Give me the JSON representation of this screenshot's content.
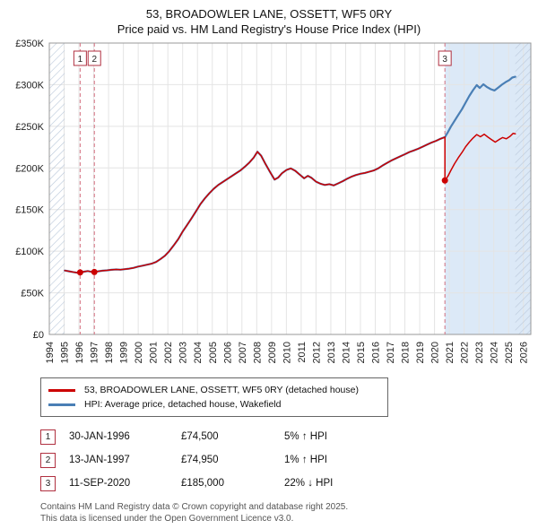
{
  "chart_data": {
    "type": "line",
    "title": "53, BROADOWLER LANE, OSSETT, WF5 0RY",
    "subtitle": "Price paid vs. HM Land Registry's House Price Index (HPI)",
    "x_range": [
      1994,
      2026.5
    ],
    "y_range": [
      0,
      350000
    ],
    "grid": true,
    "legend_position": "below",
    "x_ticks": [
      1994,
      1995,
      1996,
      1997,
      1998,
      1999,
      2000,
      2001,
      2002,
      2003,
      2004,
      2005,
      2006,
      2007,
      2008,
      2009,
      2010,
      2011,
      2012,
      2013,
      2014,
      2015,
      2016,
      2017,
      2018,
      2019,
      2020,
      2021,
      2022,
      2023,
      2024,
      2025,
      2026
    ],
    "y_ticks": [
      {
        "value": 0,
        "label": "£0"
      },
      {
        "value": 50000,
        "label": "£50K"
      },
      {
        "value": 100000,
        "label": "£100K"
      },
      {
        "value": 150000,
        "label": "£150K"
      },
      {
        "value": 200000,
        "label": "£200K"
      },
      {
        "value": 250000,
        "label": "£250K"
      },
      {
        "value": 300000,
        "label": "£300K"
      },
      {
        "value": 350000,
        "label": "£350K"
      }
    ],
    "point_sets": {
      "shared_pre_2020": [
        [
          1995.04,
          76800
        ],
        [
          1995.3,
          75900
        ],
        [
          1995.6,
          74900
        ],
        [
          1995.9,
          74100
        ],
        [
          1996.08,
          74500
        ],
        [
          1996.35,
          75400
        ],
        [
          1996.6,
          76100
        ],
        [
          1996.85,
          75200
        ],
        [
          1997.04,
          74950
        ],
        [
          1997.3,
          75800
        ],
        [
          1997.6,
          76600
        ],
        [
          1997.9,
          77000
        ],
        [
          1998.2,
          77600
        ],
        [
          1998.5,
          78100
        ],
        [
          1998.8,
          77800
        ],
        [
          1999.1,
          78400
        ],
        [
          1999.4,
          79000
        ],
        [
          1999.7,
          80000
        ],
        [
          2000.0,
          81500
        ],
        [
          2000.3,
          82600
        ],
        [
          2000.6,
          83800
        ],
        [
          2000.9,
          85000
        ],
        [
          2001.2,
          87000
        ],
        [
          2001.5,
          90500
        ],
        [
          2001.8,
          94500
        ],
        [
          2002.1,
          100000
        ],
        [
          2002.4,
          107000
        ],
        [
          2002.7,
          114500
        ],
        [
          2003.0,
          123500
        ],
        [
          2003.3,
          131500
        ],
        [
          2003.6,
          139500
        ],
        [
          2003.9,
          148000
        ],
        [
          2004.2,
          156500
        ],
        [
          2004.5,
          163500
        ],
        [
          2004.8,
          169500
        ],
        [
          2005.1,
          175000
        ],
        [
          2005.4,
          179500
        ],
        [
          2005.7,
          183000
        ],
        [
          2006.0,
          186500
        ],
        [
          2006.3,
          190000
        ],
        [
          2006.6,
          193500
        ],
        [
          2006.9,
          197000
        ],
        [
          2007.2,
          201500
        ],
        [
          2007.5,
          206500
        ],
        [
          2007.8,
          212500
        ],
        [
          2008.05,
          219500
        ],
        [
          2008.3,
          214500
        ],
        [
          2008.6,
          204500
        ],
        [
          2008.9,
          195000
        ],
        [
          2009.2,
          186000
        ],
        [
          2009.45,
          188500
        ],
        [
          2009.7,
          193500
        ],
        [
          2010.0,
          197500
        ],
        [
          2010.3,
          199500
        ],
        [
          2010.6,
          196500
        ],
        [
          2010.9,
          192000
        ],
        [
          2011.2,
          187500
        ],
        [
          2011.45,
          190500
        ],
        [
          2011.7,
          188000
        ],
        [
          2012.0,
          183500
        ],
        [
          2012.3,
          181000
        ],
        [
          2012.6,
          179500
        ],
        [
          2012.9,
          180500
        ],
        [
          2013.2,
          179000
        ],
        [
          2013.5,
          181500
        ],
        [
          2013.8,
          184000
        ],
        [
          2014.1,
          187000
        ],
        [
          2014.4,
          189500
        ],
        [
          2014.7,
          191500
        ],
        [
          2015.0,
          193000
        ],
        [
          2015.3,
          194000
        ],
        [
          2015.6,
          195500
        ],
        [
          2015.9,
          197000
        ],
        [
          2016.2,
          199500
        ],
        [
          2016.5,
          203000
        ],
        [
          2016.8,
          206000
        ],
        [
          2017.1,
          209000
        ],
        [
          2017.4,
          211500
        ],
        [
          2017.7,
          214000
        ],
        [
          2018.0,
          216500
        ],
        [
          2018.3,
          219000
        ],
        [
          2018.6,
          221000
        ],
        [
          2018.9,
          223000
        ],
        [
          2019.2,
          225500
        ],
        [
          2019.5,
          228000
        ],
        [
          2019.8,
          230500
        ],
        [
          2020.1,
          232500
        ],
        [
          2020.4,
          235000
        ],
        [
          2020.7,
          237000
        ]
      ],
      "property_post_2020": [
        [
          2020.7,
          185000
        ],
        [
          2020.9,
          190000
        ],
        [
          2021.1,
          197000
        ],
        [
          2021.35,
          205000
        ],
        [
          2021.6,
          212000
        ],
        [
          2021.85,
          218500
        ],
        [
          2022.1,
          225500
        ],
        [
          2022.35,
          231000
        ],
        [
          2022.6,
          236000
        ],
        [
          2022.85,
          240000
        ],
        [
          2023.1,
          237500
        ],
        [
          2023.35,
          240500
        ],
        [
          2023.6,
          237000
        ],
        [
          2023.85,
          234000
        ],
        [
          2024.1,
          231000
        ],
        [
          2024.35,
          234000
        ],
        [
          2024.6,
          236500
        ],
        [
          2024.85,
          235000
        ],
        [
          2025.1,
          238000
        ],
        [
          2025.3,
          241500
        ],
        [
          2025.45,
          241000
        ]
      ],
      "hpi_post_2020": [
        [
          2020.9,
          243000
        ],
        [
          2021.1,
          249500
        ],
        [
          2021.35,
          256500
        ],
        [
          2021.6,
          263500
        ],
        [
          2021.85,
          270500
        ],
        [
          2022.1,
          278500
        ],
        [
          2022.35,
          286500
        ],
        [
          2022.6,
          293500
        ],
        [
          2022.85,
          299500
        ],
        [
          2023.05,
          296000
        ],
        [
          2023.3,
          300500
        ],
        [
          2023.55,
          297000
        ],
        [
          2023.8,
          294500
        ],
        [
          2024.05,
          293000
        ],
        [
          2024.3,
          296500
        ],
        [
          2024.55,
          300000
        ],
        [
          2024.8,
          303000
        ],
        [
          2025.05,
          305500
        ],
        [
          2025.25,
          308500
        ],
        [
          2025.45,
          309500
        ]
      ]
    },
    "series": [
      {
        "name": "53, BROADOWLER LANE, OSSETT, WF5 0RY (detached house)",
        "color": "#cc0000",
        "points_from": [
          "shared_pre_2020",
          "property_post_2020"
        ]
      },
      {
        "name": "HPI: Average price, detached house, Wakefield",
        "color": "#4a7fb5",
        "points_from": [
          "shared_pre_2020",
          "hpi_post_2020"
        ]
      }
    ],
    "sales": [
      {
        "num": "1",
        "date": "30-JAN-1996",
        "price": "£74,500",
        "hpi_delta": "5% ↑ HPI",
        "x": 1996.08,
        "value": 74500
      },
      {
        "num": "2",
        "date": "13-JAN-1997",
        "price": "£74,950",
        "hpi_delta": "1% ↑ HPI",
        "x": 1997.04,
        "value": 74950
      },
      {
        "num": "3",
        "date": "11-SEP-2020",
        "price": "£185,000",
        "hpi_delta": "22% ↓ HPI",
        "x": 2020.7,
        "value": 185000
      }
    ],
    "regions": {
      "hatch_left": [
        1994,
        1995.04
      ],
      "hatch_right": [
        2025.45,
        2026.5
      ],
      "hpi_projection_shade": [
        2020.7,
        2026.5
      ]
    },
    "colors": {
      "shade": "#dce9f7",
      "hatch_line": "#b9c7d9",
      "sale_dashed_line": "#d4707f",
      "grid": "#e4e4e4",
      "plot_border": "#999999",
      "sale_marker": "#cc0000",
      "badge_border": "#b03040"
    }
  },
  "footer": {
    "line1": "Contains HM Land Registry data © Crown copyright and database right 2025.",
    "line2": "This data is licensed under the Open Government Licence v3.0."
  }
}
